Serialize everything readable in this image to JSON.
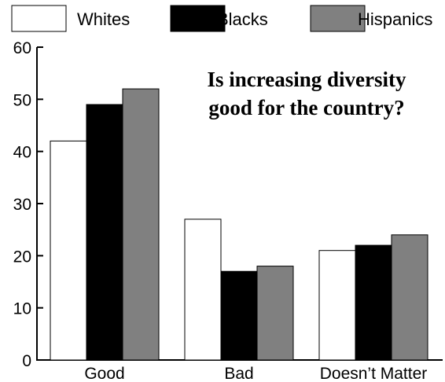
{
  "chart_data": {
    "type": "bar",
    "title_lines": [
      "Is increasing diversity",
      "good for the country?"
    ],
    "xlabel": "",
    "ylabel": "",
    "categories": [
      "Good",
      "Bad",
      "Doesn’t Matter"
    ],
    "series": [
      {
        "name": "Whites",
        "values": [
          42,
          27,
          21
        ],
        "color": "#ffffff"
      },
      {
        "name": "Blacks",
        "values": [
          49,
          17,
          22
        ],
        "color": "#000000"
      },
      {
        "name": "Hispanics",
        "values": [
          52,
          18,
          24
        ],
        "color": "#808080"
      }
    ],
    "ylim": [
      0,
      60
    ],
    "yticks": [
      0,
      10,
      20,
      30,
      40,
      50,
      60
    ],
    "grid": false,
    "legend_position": "top"
  }
}
